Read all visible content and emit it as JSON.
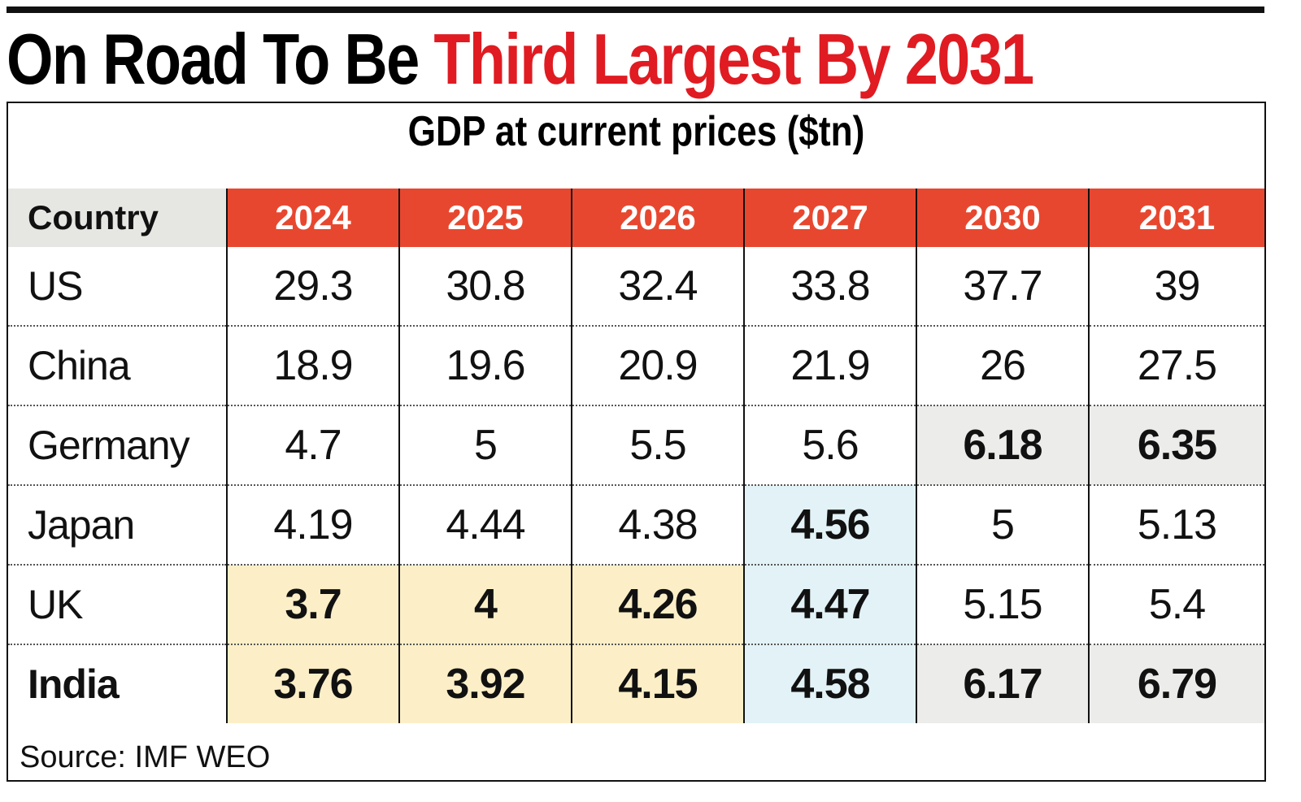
{
  "header": {
    "title_black": "On Road To Be",
    "title_red": "Third Largest By 2031",
    "subtitle": "GDP at current prices ($tn)"
  },
  "table": {
    "columns": [
      "Country",
      "2024",
      "2025",
      "2026",
      "2027",
      "2030",
      "2031"
    ],
    "rows": [
      [
        "US",
        29.3,
        30.8,
        32.4,
        33.8,
        37.7,
        39
      ],
      [
        "China",
        18.9,
        19.6,
        20.9,
        21.9,
        26,
        27.5
      ],
      [
        "Germany",
        4.7,
        5,
        5.5,
        5.6,
        6.18,
        6.35
      ],
      [
        "Japan",
        4.19,
        4.44,
        4.38,
        4.56,
        5,
        5.13
      ],
      [
        "UK",
        3.7,
        4,
        4.26,
        4.47,
        5.15,
        5.4
      ],
      [
        "India",
        3.76,
        3.92,
        4.15,
        4.58,
        6.17,
        6.79
      ]
    ]
  },
  "footer": {
    "source": "Source: IMF WEO"
  }
}
